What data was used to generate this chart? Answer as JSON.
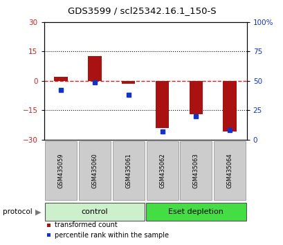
{
  "title": "GDS3599 / scl25342.16.1_150-S",
  "samples": [
    "GSM435059",
    "GSM435060",
    "GSM435061",
    "GSM435062",
    "GSM435063",
    "GSM435064"
  ],
  "transformed_counts": [
    2.0,
    12.5,
    -1.5,
    -24.0,
    -17.0,
    -26.0
  ],
  "percentile_ranks": [
    42.0,
    49.0,
    38.0,
    7.0,
    20.0,
    8.0
  ],
  "ylim_left": [
    -30,
    30
  ],
  "ylim_right": [
    0,
    100
  ],
  "yticks_left": [
    -30,
    -15,
    0,
    15,
    30
  ],
  "yticks_right": [
    0,
    25,
    50,
    75,
    100
  ],
  "ytick_labels_right": [
    "0",
    "25",
    "50",
    "75",
    "100%"
  ],
  "bar_color": "#aa1111",
  "dot_color": "#1133cc",
  "zero_line_color": "#cc2222",
  "protocol_groups": [
    {
      "label": "control",
      "start": 0,
      "end": 3,
      "color": "#ccf0cc"
    },
    {
      "label": "Eset depletion",
      "start": 3,
      "end": 6,
      "color": "#44dd44"
    }
  ],
  "protocol_label": "protocol",
  "legend_items": [
    {
      "color": "#aa1111",
      "label": "transformed count"
    },
    {
      "color": "#1133cc",
      "label": "percentile rank within the sample"
    }
  ],
  "bar_width": 0.4,
  "tick_label_color_left": "#cc2222",
  "tick_label_color_right": "#1133cc",
  "sample_box_color": "#cccccc",
  "fig_width": 4.1,
  "fig_height": 3.54
}
